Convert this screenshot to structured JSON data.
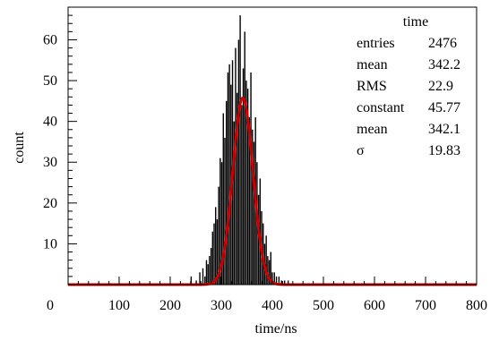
{
  "chart_data": {
    "type": "bar",
    "title": "",
    "xlabel": "time/ns",
    "ylabel": "count",
    "xlim": [
      0,
      800
    ],
    "ylim": [
      0,
      68
    ],
    "xticks": [
      0,
      100,
      200,
      300,
      400,
      500,
      600,
      700,
      800
    ],
    "yticks": [
      10,
      20,
      30,
      40,
      50,
      60
    ],
    "grid": false,
    "histogram": {
      "name": "time",
      "color": "#000000",
      "bin_width": 1,
      "x": [
        241,
        251,
        258,
        264,
        268,
        271,
        274,
        277,
        280,
        283,
        286,
        289,
        292,
        295,
        298,
        301,
        304,
        307,
        310,
        313,
        316,
        319,
        322,
        325,
        328,
        331,
        334,
        337,
        340,
        343,
        346,
        349,
        352,
        355,
        358,
        361,
        364,
        367,
        370,
        373,
        376,
        379,
        382,
        385,
        388,
        391,
        394,
        397,
        400,
        404,
        408,
        413,
        418,
        424,
        431
      ],
      "values": [
        2,
        1,
        3,
        4,
        2,
        6,
        5,
        7,
        9,
        13,
        15,
        19,
        16,
        24,
        31,
        30,
        42,
        36,
        45,
        52,
        54,
        49,
        55,
        40,
        58,
        47,
        60,
        66,
        44,
        53,
        62,
        50,
        48,
        41,
        52,
        38,
        35,
        41,
        30,
        22,
        26,
        18,
        15,
        10,
        12,
        7,
        6,
        8,
        3,
        3,
        2,
        2,
        1,
        1,
        1
      ]
    },
    "fit": {
      "function": "gaussian",
      "color": "#cc0000",
      "constant": 45.77,
      "mean": 342.1,
      "sigma": 19.83
    }
  },
  "stats_box": {
    "title": "time",
    "rows": [
      {
        "label": "entries",
        "value": "2476"
      },
      {
        "label": "mean",
        "value": "342.2"
      },
      {
        "label": "RMS",
        "value": "22.9"
      },
      {
        "label": "constant",
        "value": "45.77"
      },
      {
        "label": "mean",
        "value": "342.1"
      },
      {
        "label": "σ",
        "value": "19.83"
      }
    ]
  }
}
